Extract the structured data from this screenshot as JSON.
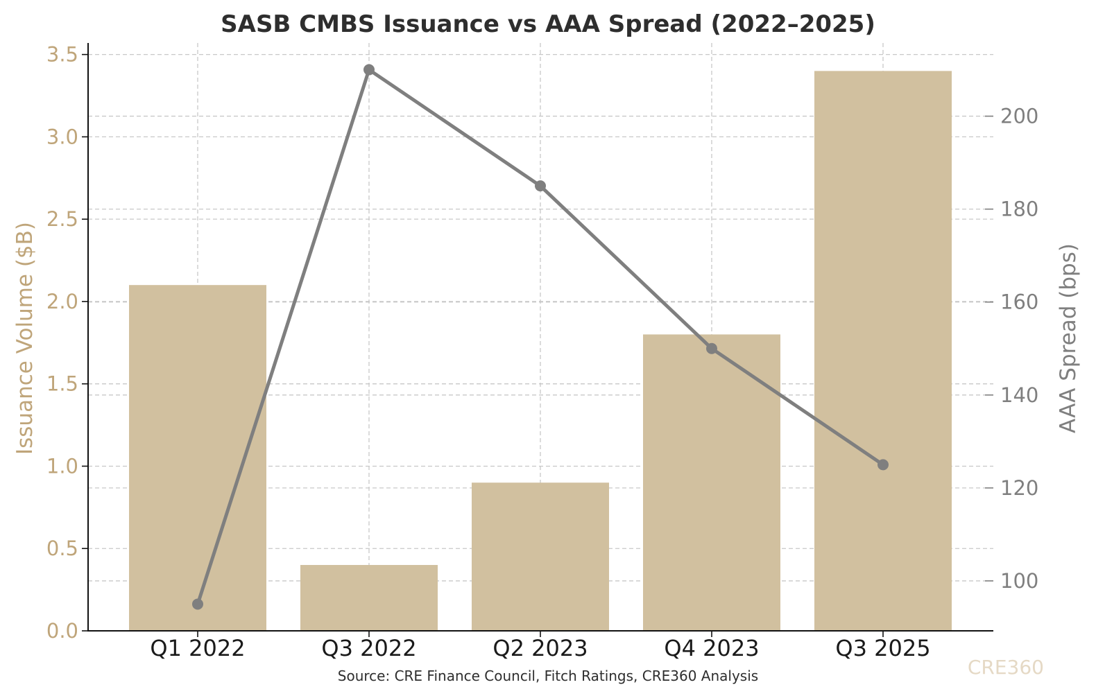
{
  "chart_data": {
    "type": "bar+line",
    "title": "SASB CMBS Issuance vs AAA Spread (2022–2025)",
    "categories": [
      "Q1 2022",
      "Q3 2022",
      "Q2 2023",
      "Q4 2023",
      "Q3 2025"
    ],
    "series": [
      {
        "name": "Issuance Volume ($B)",
        "type": "bar",
        "axis": "left",
        "color": "#d1c09f",
        "values": [
          2.1,
          0.4,
          0.9,
          1.8,
          3.4
        ]
      },
      {
        "name": "AAA Spread (bps)",
        "type": "line",
        "axis": "right",
        "color": "#7f7f7f",
        "values": [
          95,
          210,
          185,
          150,
          125
        ]
      }
    ],
    "ylabel_left": "Issuance Volume ($B)",
    "ylabel_right": "AAA Spread (bps)",
    "ylim_left": [
      0,
      3.57
    ],
    "yticks_left": [
      "0.0",
      "0.5",
      "1.0",
      "1.5",
      "2.0",
      "2.5",
      "3.0",
      "3.5"
    ],
    "ylim_right": [
      89.25,
      215.75
    ],
    "yticks_right": [
      "100",
      "120",
      "140",
      "160",
      "180",
      "200"
    ],
    "grid": true,
    "left_axis_color": "#bfa57a",
    "right_axis_color": "#7f7f7f"
  },
  "source": "Source: CRE Finance Council, Fitch Ratings, CRE360 Analysis",
  "watermark": "CRE360"
}
